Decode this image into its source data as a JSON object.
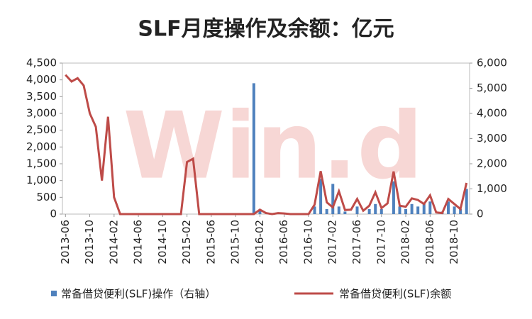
{
  "chart_data": {
    "type": "bar-line",
    "title": "SLF月度操作及余额：亿元",
    "watermark": "Win.d",
    "categories": [
      "2013-06",
      null,
      null,
      null,
      "2013-10",
      null,
      null,
      null,
      "2014-02",
      null,
      null,
      null,
      "2014-06",
      null,
      null,
      null,
      "2014-10",
      null,
      null,
      null,
      "2015-02",
      null,
      null,
      null,
      "2015-06",
      null,
      null,
      null,
      "2015-10",
      null,
      null,
      null,
      "2016-02",
      null,
      null,
      null,
      "2016-06",
      null,
      null,
      null,
      "2016-10",
      null,
      null,
      null,
      "2017-02",
      null,
      null,
      null,
      "2017-06",
      null,
      null,
      null,
      "2017-10",
      null,
      null,
      null,
      "2018-02",
      null,
      null,
      null,
      "2018-06",
      null,
      null,
      null,
      "2018-10",
      null,
      null
    ],
    "series": [
      {
        "name": "常备借贷便利(SLF)操作（右轴）",
        "type": "bar",
        "axis": "y2",
        "color": "#4f81bd",
        "values": [
          0,
          0,
          0,
          0,
          0,
          0,
          0,
          0,
          0,
          0,
          0,
          0,
          0,
          0,
          0,
          0,
          0,
          0,
          0,
          0,
          0,
          0,
          0,
          0,
          0,
          0,
          0,
          0,
          0,
          0,
          0,
          5200,
          150,
          0,
          0,
          0,
          0,
          0,
          0,
          0,
          0,
          300,
          1400,
          200,
          1200,
          300,
          100,
          0,
          300,
          0,
          200,
          400,
          200,
          0,
          1300,
          300,
          200,
          400,
          300,
          400,
          500,
          0,
          100,
          500,
          300,
          200,
          1000
        ]
      },
      {
        "name": "常备借贷便利(SLF)余额",
        "type": "line",
        "axis": "y",
        "color": "#be4b48",
        "values": [
          4150,
          3950,
          4050,
          3830,
          3000,
          2600,
          1000,
          2900,
          500,
          0,
          0,
          0,
          0,
          0,
          0,
          0,
          0,
          0,
          0,
          0,
          1550,
          1650,
          0,
          0,
          0,
          0,
          0,
          0,
          0,
          0,
          0,
          0,
          130,
          30,
          0,
          30,
          20,
          0,
          0,
          0,
          0,
          280,
          1280,
          350,
          200,
          680,
          120,
          130,
          450,
          100,
          250,
          650,
          180,
          320,
          1270,
          250,
          220,
          470,
          420,
          300,
          560,
          50,
          30,
          450,
          300,
          150,
          930
        ]
      }
    ],
    "ylim": [
      0,
      4500
    ],
    "yticks": [
      0,
      500,
      {
        "value": 1000,
        "label": "1,000"
      },
      {
        "value": 1500,
        "label": "1,500"
      },
      {
        "value": 2000,
        "label": "2,000"
      },
      {
        "value": 2500,
        "label": "2,500"
      },
      {
        "value": 3000,
        "label": "3,000"
      },
      {
        "value": 3500,
        "label": "3,500"
      },
      {
        "value": 4000,
        "label": "4,000"
      },
      {
        "value": 4500,
        "label": "4,500"
      }
    ],
    "y2lim": [
      0,
      6000
    ],
    "y2ticks": [
      0,
      {
        "value": 1000,
        "label": "1,000"
      },
      {
        "value": 2000,
        "label": "2,000"
      },
      {
        "value": 3000,
        "label": "3,000"
      },
      {
        "value": 4000,
        "label": "4,000"
      },
      {
        "value": 5000,
        "label": "5,000"
      },
      {
        "value": 6000,
        "label": "6,000"
      }
    ]
  }
}
